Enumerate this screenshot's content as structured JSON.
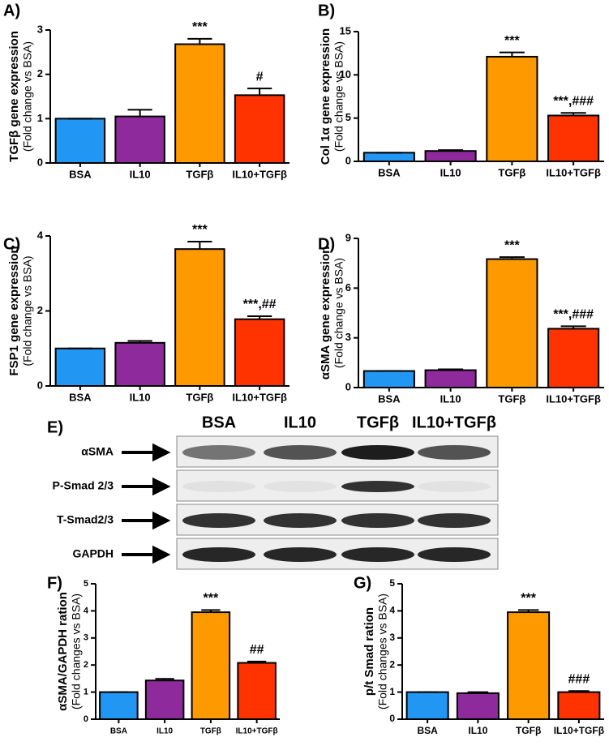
{
  "chart_data": [
    {
      "type": "bar",
      "panel": "A)",
      "ylabel": "TGFβ gene expression",
      "ylabel2": "(Fold change vs BSA)",
      "categories": [
        "BSA",
        "IL10",
        "TGFβ",
        "IL10+TGFβ"
      ],
      "values": [
        1.0,
        1.05,
        2.68,
        1.53
      ],
      "errors": [
        0,
        0.15,
        0.12,
        0.15
      ],
      "annotations": [
        null,
        null,
        "***",
        "#"
      ],
      "colors": [
        "#2196f3",
        "#8e2a9c",
        "#ff9900",
        "#ff3300"
      ],
      "ylim": [
        0,
        3
      ],
      "yticks": [
        0,
        1,
        2,
        3
      ]
    },
    {
      "type": "bar",
      "panel": "B)",
      "ylabel": "Col 1α gene expression",
      "ylabel2": "(Fold change vs BSA)",
      "categories": [
        "BSA",
        "IL10",
        "TGFβ",
        "IL10+TGFβ"
      ],
      "values": [
        1.0,
        1.2,
        12.1,
        5.3
      ],
      "errors": [
        0,
        0.1,
        0.5,
        0.3
      ],
      "annotations": [
        null,
        null,
        "***",
        "***,###"
      ],
      "colors": [
        "#2196f3",
        "#8e2a9c",
        "#ff9900",
        "#ff3300"
      ],
      "ylim": [
        0,
        15
      ],
      "yticks": [
        0,
        5,
        10,
        15
      ]
    },
    {
      "type": "bar",
      "panel": "C)",
      "ylabel": "FSP1 gene expression",
      "ylabel2": "(Fold change vs BSA)",
      "categories": [
        "BSA",
        "IL10",
        "TGFβ",
        "IL10+TGFβ"
      ],
      "values": [
        1.0,
        1.15,
        3.65,
        1.78
      ],
      "errors": [
        0,
        0.05,
        0.2,
        0.08
      ],
      "annotations": [
        null,
        null,
        "***",
        "***,##"
      ],
      "colors": [
        "#2196f3",
        "#8e2a9c",
        "#ff9900",
        "#ff3300"
      ],
      "ylim": [
        0,
        4
      ],
      "yticks": [
        0,
        2,
        4
      ]
    },
    {
      "type": "bar",
      "panel": "D)",
      "ylabel": "αSMA gene expression",
      "ylabel2": "(Fold change vs BSA)",
      "categories": [
        "BSA",
        "IL10",
        "TGFβ",
        "IL10+TGFβ"
      ],
      "values": [
        1.0,
        1.05,
        7.75,
        3.55
      ],
      "errors": [
        0,
        0.05,
        0.12,
        0.15
      ],
      "annotations": [
        null,
        null,
        "***",
        "***,###"
      ],
      "colors": [
        "#2196f3",
        "#8e2a9c",
        "#ff9900",
        "#ff3300"
      ],
      "ylim": [
        0,
        9
      ],
      "yticks": [
        0,
        3,
        6,
        9
      ]
    },
    {
      "type": "bar",
      "panel": "F)",
      "ylabel": "αSMA/GAPDH ration",
      "ylabel2": "(Fold changes vs BSA)",
      "categories": [
        "BSA",
        "IL10",
        "TGFβ",
        "IL10+TGFβ"
      ],
      "values": [
        1.0,
        1.43,
        3.95,
        2.08
      ],
      "errors": [
        0,
        0.06,
        0.08,
        0.05
      ],
      "annotations": [
        null,
        null,
        "***",
        "##"
      ],
      "colors": [
        "#2196f3",
        "#8e2a9c",
        "#ff9900",
        "#ff3300"
      ],
      "ylim": [
        0,
        5
      ],
      "yticks": [
        0,
        1,
        2,
        3,
        4,
        5
      ]
    },
    {
      "type": "bar",
      "panel": "G)",
      "ylabel": "p/t Smad ration",
      "ylabel2": "(Fold changes vs BSA)",
      "categories": [
        "BSA",
        "IL10",
        "TGFβ",
        "IL10+TGFβ"
      ],
      "values": [
        1.0,
        0.96,
        3.95,
        1.0
      ],
      "errors": [
        0,
        0.04,
        0.08,
        0.04
      ],
      "annotations": [
        null,
        null,
        "***",
        "###"
      ],
      "colors": [
        "#2196f3",
        "#8e2a9c",
        "#ff9900",
        "#ff3300"
      ],
      "ylim": [
        0,
        5
      ],
      "yticks": [
        0,
        1,
        2,
        3,
        4,
        5
      ]
    }
  ],
  "blot": {
    "panel": "E)",
    "lanes": [
      "BSA",
      "IL10",
      "TGFβ",
      "IL10+TGFβ"
    ],
    "rows": [
      "αSMA",
      "P-Smad 2/3",
      "T-Smad2/3",
      "GAPDH"
    ]
  }
}
